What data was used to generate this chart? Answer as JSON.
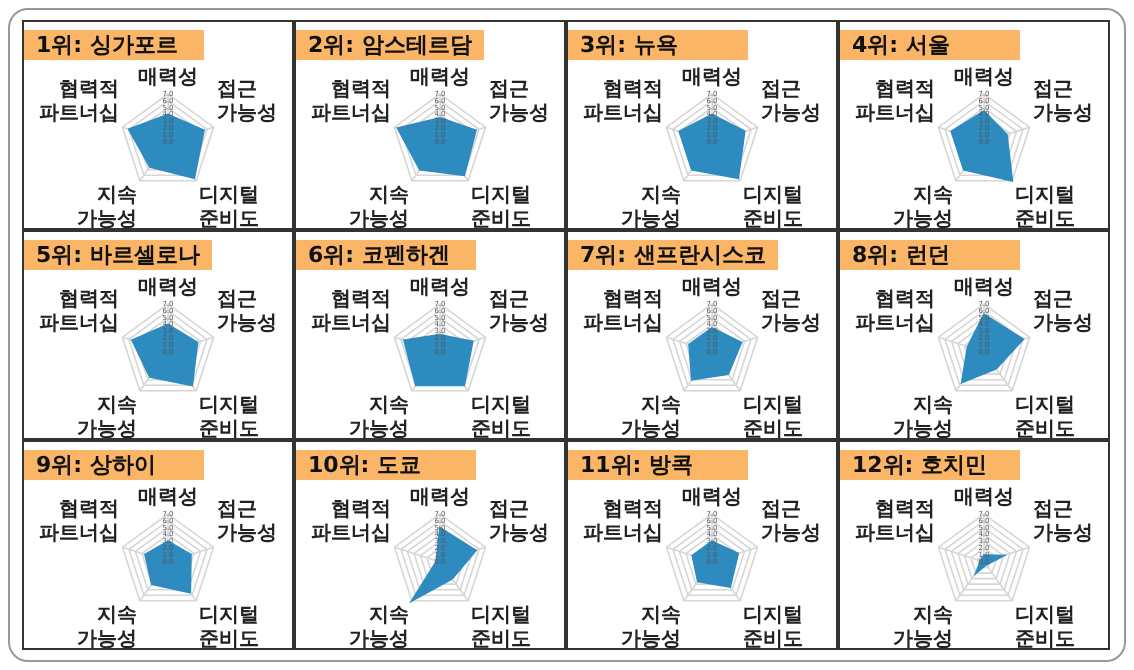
{
  "chart_data": [
    {
      "type": "radar",
      "title": "1위: 싱가포르",
      "categories": [
        "매력성",
        "접근 가능성",
        "디지털 준비도",
        "지속 가능성",
        "협력적 파트너십"
      ],
      "series": [
        {
          "color": "#2e8bbf",
          "values": [
            4.0,
            5.5,
            6.5,
            4.5,
            6.0
          ]
        }
      ],
      "ylim": [
        0,
        7
      ],
      "yticks": [
        {
          "value": 0,
          "label": "0.0"
        },
        {
          "value": 1,
          "label": "1.0"
        },
        {
          "value": 2,
          "label": "2.0"
        },
        {
          "value": 3,
          "label": "3.0"
        },
        {
          "value": 4,
          "label": "4.0"
        },
        {
          "value": 5,
          "label": "5.0"
        },
        {
          "value": 6,
          "label": "6.0"
        },
        {
          "value": 7,
          "label": "7.0"
        }
      ],
      "grid": true,
      "marker": "none"
    },
    {
      "type": "radar",
      "title": "2위: 암스테르담",
      "categories": [
        "매력성",
        "접근 가능성",
        "디지털 준비도",
        "지속 가능성",
        "협력적 파트너십"
      ],
      "series": [
        {
          "color": "#2e8bbf",
          "values": [
            3.5,
            5.5,
            6.0,
            5.0,
            6.5
          ]
        }
      ],
      "ylim": [
        0,
        7
      ],
      "yticks": [
        {
          "value": 0,
          "label": "0.0"
        },
        {
          "value": 1,
          "label": "1.0"
        },
        {
          "value": 2,
          "label": "2.0"
        },
        {
          "value": 3,
          "label": "3.0"
        },
        {
          "value": 4,
          "label": "4.0"
        },
        {
          "value": 5,
          "label": "5.0"
        },
        {
          "value": 6,
          "label": "6.0"
        },
        {
          "value": 7,
          "label": "7.0"
        }
      ],
      "grid": true,
      "marker": "none"
    },
    {
      "type": "radar",
      "title": "3위: 뉴욕",
      "categories": [
        "매력성",
        "접근 가능성",
        "디지털 준비도",
        "지속 가능성",
        "협력적 파트너십"
      ],
      "series": [
        {
          "color": "#2e8bbf",
          "values": [
            4.0,
            5.0,
            6.5,
            5.0,
            5.0
          ]
        }
      ],
      "ylim": [
        0,
        7
      ],
      "yticks": [
        {
          "value": 0,
          "label": "0.0"
        },
        {
          "value": 1,
          "label": "1.0"
        },
        {
          "value": 2,
          "label": "2.0"
        },
        {
          "value": 3,
          "label": "3.0"
        },
        {
          "value": 4,
          "label": "4.0"
        },
        {
          "value": 5,
          "label": "5.0"
        },
        {
          "value": 6,
          "label": "6.0"
        },
        {
          "value": 7,
          "label": "7.0"
        }
      ],
      "grid": true,
      "marker": "none"
    },
    {
      "type": "radar",
      "title": "4위: 서울",
      "categories": [
        "매력성",
        "접근 가능성",
        "디지털 준비도",
        "지속 가능성",
        "협력적 파트너십"
      ],
      "series": [
        {
          "color": "#2e8bbf",
          "values": [
            4.5,
            3.5,
            7.0,
            5.0,
            5.0
          ]
        }
      ],
      "ylim": [
        0,
        7
      ],
      "yticks": [
        {
          "value": 0,
          "label": "0.0"
        },
        {
          "value": 1,
          "label": "1.0"
        },
        {
          "value": 2,
          "label": "2.0"
        },
        {
          "value": 3,
          "label": "3.0"
        },
        {
          "value": 4,
          "label": "4.0"
        },
        {
          "value": 5,
          "label": "5.0"
        },
        {
          "value": 6,
          "label": "6.0"
        },
        {
          "value": 7,
          "label": "7.0"
        }
      ],
      "grid": true,
      "marker": "none"
    },
    {
      "type": "radar",
      "title": "5위: 바르셀로나",
      "categories": [
        "매력성",
        "접근 가능성",
        "디지털 준비도",
        "지속 가능성",
        "협력적 파트너십"
      ],
      "series": [
        {
          "color": "#2e8bbf",
          "values": [
            4.0,
            4.5,
            6.0,
            4.5,
            5.5
          ]
        }
      ],
      "ylim": [
        0,
        7
      ],
      "yticks": [
        {
          "value": 0,
          "label": "0.0"
        },
        {
          "value": 1,
          "label": "1.0"
        },
        {
          "value": 2,
          "label": "2.0"
        },
        {
          "value": 3,
          "label": "3.0"
        },
        {
          "value": 4,
          "label": "4.0"
        },
        {
          "value": 5,
          "label": "5.0"
        },
        {
          "value": 6,
          "label": "6.0"
        },
        {
          "value": 7,
          "label": "7.0"
        }
      ],
      "grid": true,
      "marker": "none"
    },
    {
      "type": "radar",
      "title": "6위: 코펜하겐",
      "categories": [
        "매력성",
        "접근 가능성",
        "디지털 준비도",
        "지속 가능성",
        "협력적 파트너십"
      ],
      "series": [
        {
          "color": "#2e8bbf",
          "values": [
            2.5,
            5.0,
            6.0,
            6.0,
            5.5
          ]
        }
      ],
      "ylim": [
        0,
        7
      ],
      "yticks": [
        {
          "value": 0,
          "label": "0.0"
        },
        {
          "value": 1,
          "label": "1.0"
        },
        {
          "value": 2,
          "label": "2.0"
        },
        {
          "value": 3,
          "label": "3.0"
        },
        {
          "value": 4,
          "label": "4.0"
        },
        {
          "value": 5,
          "label": "5.0"
        },
        {
          "value": 6,
          "label": "6.0"
        },
        {
          "value": 7,
          "label": "7.0"
        }
      ],
      "grid": true,
      "marker": "none"
    },
    {
      "type": "radar",
      "title": "7위: 샌프란시스코",
      "categories": [
        "매력성",
        "접근 가능성",
        "디지털 준비도",
        "지속 가능성",
        "협력적 파트너십"
      ],
      "series": [
        {
          "color": "#2e8bbf",
          "values": [
            3.5,
            4.5,
            4.0,
            5.0,
            3.5
          ]
        }
      ],
      "ylim": [
        0,
        7
      ],
      "yticks": [
        {
          "value": 0,
          "label": "0.0"
        },
        {
          "value": 1,
          "label": "1.0"
        },
        {
          "value": 2,
          "label": "2.0"
        },
        {
          "value": 3,
          "label": "3.0"
        },
        {
          "value": 4,
          "label": "4.0"
        },
        {
          "value": 5,
          "label": "5.0"
        },
        {
          "value": 6,
          "label": "6.0"
        },
        {
          "value": 7,
          "label": "7.0"
        }
      ],
      "grid": true,
      "marker": "none"
    },
    {
      "type": "radar",
      "title": "8위: 런던",
      "categories": [
        "매력성",
        "접근 가능성",
        "디지털 준비도",
        "지속 가능성",
        "협력적 파트너십"
      ],
      "series": [
        {
          "color": "#2e8bbf",
          "values": [
            5.5,
            6.0,
            3.0,
            5.5,
            2.5
          ]
        }
      ],
      "ylim": [
        0,
        7
      ],
      "yticks": [
        {
          "value": 0,
          "label": "0.0"
        },
        {
          "value": 1,
          "label": "1.0"
        },
        {
          "value": 2,
          "label": "2.0"
        },
        {
          "value": 3,
          "label": "3.0"
        },
        {
          "value": 4,
          "label": "4.0"
        },
        {
          "value": 5,
          "label": "5.0"
        },
        {
          "value": 6,
          "label": "6.0"
        },
        {
          "value": 7,
          "label": "7.0"
        }
      ],
      "grid": true,
      "marker": "none"
    },
    {
      "type": "radar",
      "title": "9위: 상하이",
      "categories": [
        "매력성",
        "접근 가능성",
        "디지털 준비도",
        "지속 가능성",
        "협력적 파트너십"
      ],
      "series": [
        {
          "color": "#2e8bbf",
          "values": [
            3.0,
            3.5,
            5.5,
            4.0,
            3.5
          ]
        }
      ],
      "ylim": [
        0,
        7
      ],
      "yticks": [
        {
          "value": 0,
          "label": "0.0"
        },
        {
          "value": 1,
          "label": "1.0"
        },
        {
          "value": 2,
          "label": "2.0"
        },
        {
          "value": 3,
          "label": "3.0"
        },
        {
          "value": 4,
          "label": "4.0"
        },
        {
          "value": 5,
          "label": "5.0"
        },
        {
          "value": 6,
          "label": "6.0"
        },
        {
          "value": 7,
          "label": "7.0"
        }
      ],
      "grid": true,
      "marker": "none"
    },
    {
      "type": "radar",
      "title": "10위: 도쿄",
      "categories": [
        "매력성",
        "접근 가능성",
        "디지털 준비도",
        "지속 가능성",
        "협력적 파트너십"
      ],
      "series": [
        {
          "color": "#2e8bbf",
          "values": [
            5.0,
            5.5,
            3.0,
            7.0,
            0.5
          ]
        }
      ],
      "ylim": [
        0,
        7
      ],
      "yticks": [
        {
          "value": 0,
          "label": "0.0"
        },
        {
          "value": 1,
          "label": "1.0"
        },
        {
          "value": 2,
          "label": "2.0"
        },
        {
          "value": 3,
          "label": "3.0"
        },
        {
          "value": 4,
          "label": "4.0"
        },
        {
          "value": 5,
          "label": "5.0"
        },
        {
          "value": 6,
          "label": "6.0"
        },
        {
          "value": 7,
          "label": "7.0"
        }
      ],
      "grid": true,
      "marker": "none"
    },
    {
      "type": "radar",
      "title": "11위: 방콕",
      "categories": [
        "매력성",
        "접근 가능성",
        "디지털 준비도",
        "지속 가능성",
        "협력적 파트너십"
      ],
      "series": [
        {
          "color": "#2e8bbf",
          "values": [
            3.0,
            4.0,
            4.5,
            3.5,
            3.0
          ]
        }
      ],
      "ylim": [
        0,
        7
      ],
      "yticks": [
        {
          "value": 0,
          "label": "0.0"
        },
        {
          "value": 1,
          "label": "1.0"
        },
        {
          "value": 2,
          "label": "2.0"
        },
        {
          "value": 3,
          "label": "3.0"
        },
        {
          "value": 4,
          "label": "4.0"
        },
        {
          "value": 5,
          "label": "5.0"
        },
        {
          "value": 6,
          "label": "6.0"
        },
        {
          "value": 7,
          "label": "7.0"
        }
      ],
      "grid": true,
      "marker": "none"
    },
    {
      "type": "radar",
      "title": "12위: 호치민",
      "categories": [
        "매력성",
        "접근 가능성",
        "디지털 준비도",
        "지속 가능성",
        "협력적 파트너십"
      ],
      "series": [
        {
          "color": "#2e8bbf",
          "values": [
            1.0,
            3.0,
            0.5,
            2.0,
            0.5
          ]
        }
      ],
      "ylim": [
        0,
        7
      ],
      "yticks": [
        {
          "value": 0,
          "label": "0.0"
        },
        {
          "value": 1,
          "label": "1.0"
        },
        {
          "value": 2,
          "label": "2.0"
        },
        {
          "value": 3,
          "label": "3.0"
        },
        {
          "value": 4,
          "label": "4.0"
        },
        {
          "value": 5,
          "label": "5.0"
        },
        {
          "value": 6,
          "label": "6.0"
        },
        {
          "value": 7,
          "label": "7.0"
        }
      ],
      "grid": true,
      "marker": "none"
    }
  ]
}
